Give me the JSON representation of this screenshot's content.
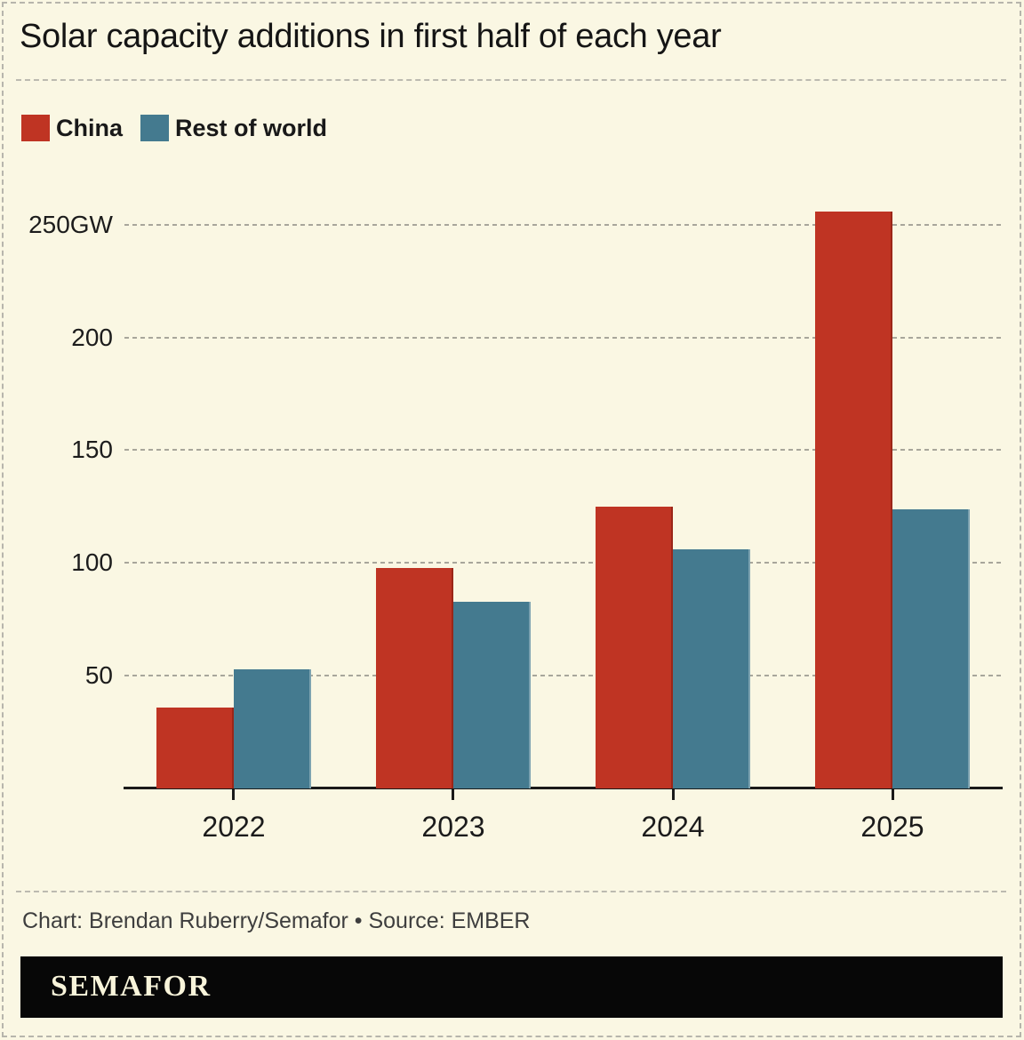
{
  "title": "Solar capacity additions in first half of each year",
  "legend": [
    {
      "label": "China",
      "color": "#bf3423"
    },
    {
      "label": "Rest of world",
      "color": "#447a8f"
    }
  ],
  "footer": {
    "credit": "Chart: Brendan Ruberry/Semafor • Source: EMBER",
    "logo": "SEMAFOR"
  },
  "colors": {
    "background": "#faf7e3",
    "china": "#bf3423",
    "rest_of_world": "#447a8f",
    "gridline": "#a8a69b",
    "axis": "#1a1a1a",
    "logo_bar": "#070707",
    "logo_text": "#f8f4da"
  },
  "chart_data": {
    "type": "bar",
    "categories": [
      "2022",
      "2023",
      "2024",
      "2025"
    ],
    "series": [
      {
        "name": "China",
        "color": "#bf3423",
        "values": [
          36,
          98,
          125,
          256
        ]
      },
      {
        "name": "Rest of world",
        "color": "#447a8f",
        "values": [
          53,
          83,
          106,
          124
        ]
      }
    ],
    "unit": "GW",
    "y_ticks": [
      {
        "value": 250,
        "label": "250GW"
      },
      {
        "value": 200,
        "label": "200"
      },
      {
        "value": 150,
        "label": "150"
      },
      {
        "value": 100,
        "label": "100"
      },
      {
        "value": 50,
        "label": "50"
      }
    ],
    "ylim": [
      0,
      260
    ],
    "xlabel": "",
    "ylabel": "",
    "grid": "horizontal-dashed",
    "legend_position": "top-left"
  }
}
